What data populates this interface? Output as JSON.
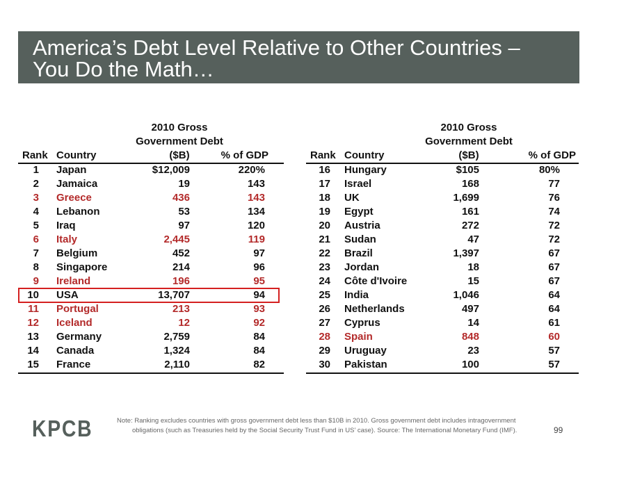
{
  "title": {
    "line1": "America’s Debt Level Relative to Other Countries –",
    "line2": "You Do the Math…"
  },
  "table": {
    "headers": {
      "rank": "Rank",
      "country": "Country",
      "debt_line1": "2010 Gross",
      "debt_line2": "Government Debt",
      "debt_line3": "($B)",
      "gdp": "% of GDP"
    },
    "left_rows": [
      {
        "rank": "1",
        "country": "Japan",
        "debt": "$12,009",
        "gdp": "220%",
        "highlight": false
      },
      {
        "rank": "2",
        "country": "Jamaica",
        "debt": "19",
        "gdp": "143",
        "highlight": false
      },
      {
        "rank": "3",
        "country": "Greece",
        "debt": "436",
        "gdp": "143",
        "highlight": true
      },
      {
        "rank": "4",
        "country": "Lebanon",
        "debt": "53",
        "gdp": "134",
        "highlight": false
      },
      {
        "rank": "5",
        "country": "Iraq",
        "debt": "97",
        "gdp": "120",
        "highlight": false
      },
      {
        "rank": "6",
        "country": "Italy",
        "debt": "2,445",
        "gdp": "119",
        "highlight": true
      },
      {
        "rank": "7",
        "country": "Belgium",
        "debt": "452",
        "gdp": "97",
        "highlight": false
      },
      {
        "rank": "8",
        "country": "Singapore",
        "debt": "214",
        "gdp": "96",
        "highlight": false
      },
      {
        "rank": "9",
        "country": "Ireland",
        "debt": "196",
        "gdp": "95",
        "highlight": true
      },
      {
        "rank": "10",
        "country": "USA",
        "debt": "13,707",
        "gdp": "94",
        "highlight": false
      },
      {
        "rank": "11",
        "country": "Portugal",
        "debt": "213",
        "gdp": "93",
        "highlight": true
      },
      {
        "rank": "12",
        "country": "Iceland",
        "debt": "12",
        "gdp": "92",
        "highlight": true
      },
      {
        "rank": "13",
        "country": "Germany",
        "debt": "2,759",
        "gdp": "84",
        "highlight": false
      },
      {
        "rank": "14",
        "country": "Canada",
        "debt": "1,324",
        "gdp": "84",
        "highlight": false
      },
      {
        "rank": "15",
        "country": "France",
        "debt": "2,110",
        "gdp": "82",
        "highlight": false
      }
    ],
    "right_rows": [
      {
        "rank": "16",
        "country": "Hungary",
        "debt": "$105",
        "gdp": "80%",
        "highlight": false
      },
      {
        "rank": "17",
        "country": "Israel",
        "debt": "168",
        "gdp": "77",
        "highlight": false
      },
      {
        "rank": "18",
        "country": "UK",
        "debt": "1,699",
        "gdp": "76",
        "highlight": false
      },
      {
        "rank": "19",
        "country": "Egypt",
        "debt": "161",
        "gdp": "74",
        "highlight": false
      },
      {
        "rank": "20",
        "country": "Austria",
        "debt": "272",
        "gdp": "72",
        "highlight": false
      },
      {
        "rank": "21",
        "country": "Sudan",
        "debt": "47",
        "gdp": "72",
        "highlight": false
      },
      {
        "rank": "22",
        "country": "Brazil",
        "debt": "1,397",
        "gdp": "67",
        "highlight": false
      },
      {
        "rank": "23",
        "country": "Jordan",
        "debt": "18",
        "gdp": "67",
        "highlight": false
      },
      {
        "rank": "24",
        "country": "Côte d'Ivoire",
        "debt": "15",
        "gdp": "67",
        "highlight": false
      },
      {
        "rank": "25",
        "country": "India",
        "debt": "1,046",
        "gdp": "64",
        "highlight": false
      },
      {
        "rank": "26",
        "country": "Netherlands",
        "debt": "497",
        "gdp": "64",
        "highlight": false
      },
      {
        "rank": "27",
        "country": "Cyprus",
        "debt": "14",
        "gdp": "61",
        "highlight": false
      },
      {
        "rank": "28",
        "country": "Spain",
        "debt": "848",
        "gdp": "60",
        "highlight": true
      },
      {
        "rank": "29",
        "country": "Uruguay",
        "debt": "23",
        "gdp": "57",
        "highlight": false
      },
      {
        "rank": "30",
        "country": "Pakistan",
        "debt": "100",
        "gdp": "57",
        "highlight": false
      }
    ],
    "boxed_country": "USA"
  },
  "footer": {
    "logo": "KPCB",
    "note_line1": "Note: Ranking excludes countries with gross government debt less than $10B in 2010.  Gross government debt includes intragovernment",
    "note_line2": "obligations (such as Treasuries held by the Social Security Trust Fund in US’ case). Source: The International Monetary Fund (IMF).",
    "page_number": "99"
  },
  "colors": {
    "title_bar": "#56605c",
    "highlight_text": "#b32a2a",
    "box_outline": "#d42020"
  }
}
